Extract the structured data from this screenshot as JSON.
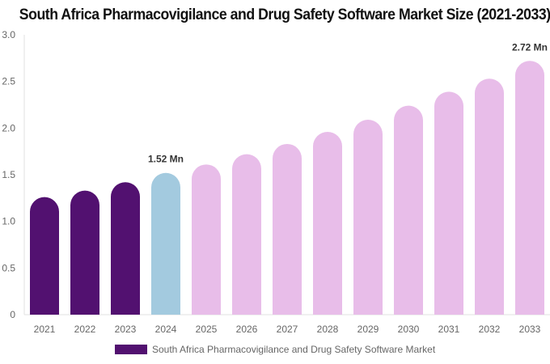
{
  "chart_data": {
    "type": "bar",
    "title": "South Africa Pharmacovigilance and Drug Safety Software Market Size (2021-2033)",
    "categories": [
      "2021",
      "2022",
      "2023",
      "2024",
      "2025",
      "2026",
      "2027",
      "2028",
      "2029",
      "2030",
      "2031",
      "2032",
      "2033"
    ],
    "series": [
      {
        "name": "South Africa Pharmacovigilance and Drug Safety Software Market",
        "values": [
          1.26,
          1.33,
          1.42,
          1.52,
          1.61,
          1.72,
          1.83,
          1.96,
          2.09,
          2.24,
          2.39,
          2.53,
          2.72
        ]
      }
    ],
    "bar_colors": {
      "historical": "#521170",
      "base_year": "#a3cadf",
      "forecast": "#e8bde9"
    },
    "bar_color_groups": [
      "historical",
      "historical",
      "historical",
      "base_year",
      "forecast",
      "forecast",
      "forecast",
      "forecast",
      "forecast",
      "forecast",
      "forecast",
      "forecast",
      "forecast"
    ],
    "data_labels": {
      "2024": "1.52 Mn",
      "2033": "2.72 Mn"
    },
    "yticks": [
      "0",
      "0.5",
      "1.0",
      "1.5",
      "2.0",
      "2.5",
      "3.0"
    ],
    "ylim": [
      0,
      3.0
    ],
    "grid": false,
    "legend": "bottom-center"
  }
}
